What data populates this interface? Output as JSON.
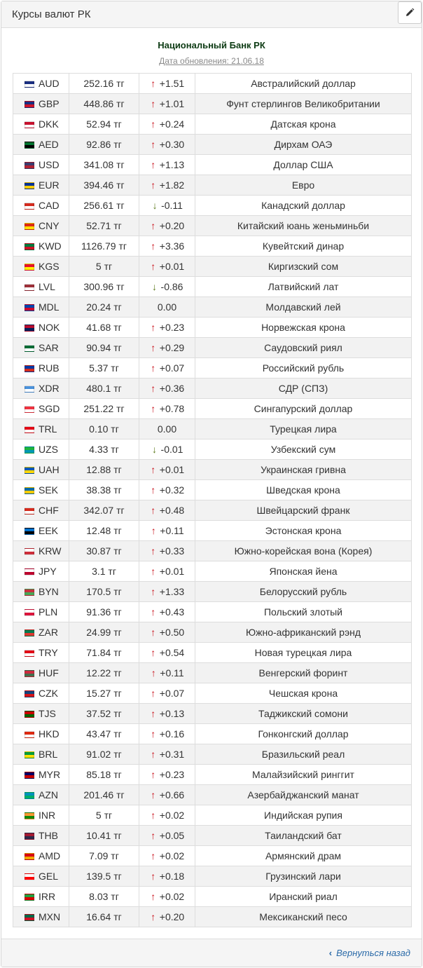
{
  "panel": {
    "title": "Курсы валют РК",
    "edit_icon": "pencil-icon"
  },
  "bank": {
    "name": "Национальный Банк РК",
    "update_label": "Дата обновления: 21.06.18"
  },
  "rates": [
    {
      "code": "AUD",
      "flag": [
        "#1a2e80",
        "#fff"
      ],
      "rate": "252.16 тг",
      "dir": "up",
      "change": "+1.51",
      "name": "Австралийский доллар"
    },
    {
      "code": "GBP",
      "flag": [
        "#1a2e80",
        "#cf142b"
      ],
      "rate": "448.86 тг",
      "dir": "up",
      "change": "+1.01",
      "name": "Фунт стерлингов Великобритании"
    },
    {
      "code": "DKK",
      "flag": [
        "#c8102e",
        "#fff"
      ],
      "rate": "52.94 тг",
      "dir": "up",
      "change": "+0.24",
      "name": "Датская крона"
    },
    {
      "code": "AED",
      "flag": [
        "#00732f",
        "#000"
      ],
      "rate": "92.86 тг",
      "dir": "up",
      "change": "+0.30",
      "name": "Дирхам ОАЭ"
    },
    {
      "code": "USD",
      "flag": [
        "#3c3b6e",
        "#b22234"
      ],
      "rate": "341.08 тг",
      "dir": "up",
      "change": "+1.13",
      "name": "Доллар США"
    },
    {
      "code": "EUR",
      "flag": [
        "#003399",
        "#ffcc00"
      ],
      "rate": "394.46 тг",
      "dir": "up",
      "change": "+1.82",
      "name": "Евро"
    },
    {
      "code": "CAD",
      "flag": [
        "#d52b1e",
        "#fff"
      ],
      "rate": "256.61 тг",
      "dir": "down",
      "change": "-0.11",
      "name": "Канадский доллар"
    },
    {
      "code": "CNY",
      "flag": [
        "#de2910",
        "#ffde00"
      ],
      "rate": "52.71 тг",
      "dir": "up",
      "change": "+0.20",
      "name": "Китайский юань женьминьби"
    },
    {
      "code": "KWD",
      "flag": [
        "#007a3d",
        "#ce1126"
      ],
      "rate": "1126.79 тг",
      "dir": "up",
      "change": "+3.36",
      "name": "Кувейтский динар"
    },
    {
      "code": "KGS",
      "flag": [
        "#e8112d",
        "#ffef00"
      ],
      "rate": "5 тг",
      "dir": "up",
      "change": "+0.01",
      "name": "Киргизский сом"
    },
    {
      "code": "LVL",
      "flag": [
        "#9e3039",
        "#fff"
      ],
      "rate": "300.96 тг",
      "dir": "down",
      "change": "-0.86",
      "name": "Латвийский лат"
    },
    {
      "code": "MDL",
      "flag": [
        "#0046ae",
        "#cc092f"
      ],
      "rate": "20.24 тг",
      "dir": "none",
      "change": "0.00",
      "name": "Молдавский лей"
    },
    {
      "code": "NOK",
      "flag": [
        "#ba0c2f",
        "#00205b"
      ],
      "rate": "41.68 тг",
      "dir": "up",
      "change": "+0.23",
      "name": "Норвежская крона"
    },
    {
      "code": "SAR",
      "flag": [
        "#006c35",
        "#fff"
      ],
      "rate": "90.94 тг",
      "dir": "up",
      "change": "+0.29",
      "name": "Саудовский риял"
    },
    {
      "code": "RUB",
      "flag": [
        "#0039a6",
        "#d52b1e"
      ],
      "rate": "5.37 тг",
      "dir": "up",
      "change": "+0.07",
      "name": "Российский рубль"
    },
    {
      "code": "XDR",
      "flag": [
        "#4b92db",
        "#fff"
      ],
      "rate": "480.1 тг",
      "dir": "up",
      "change": "+0.36",
      "name": "СДР (СПЗ)"
    },
    {
      "code": "SGD",
      "flag": [
        "#ef3340",
        "#fff"
      ],
      "rate": "251.22 тг",
      "dir": "up",
      "change": "+0.78",
      "name": "Сингапурский доллар"
    },
    {
      "code": "TRL",
      "flag": [
        "#e30a17",
        "#fff"
      ],
      "rate": "0.10 тг",
      "dir": "none",
      "change": "0.00",
      "name": "Турецкая лира"
    },
    {
      "code": "UZS",
      "flag": [
        "#1eb53a",
        "#0099b5"
      ],
      "rate": "4.33 тг",
      "dir": "down",
      "change": "-0.01",
      "name": "Узбекский сум"
    },
    {
      "code": "UAH",
      "flag": [
        "#0057b7",
        "#ffd700"
      ],
      "rate": "12.88 тг",
      "dir": "up",
      "change": "+0.01",
      "name": "Украинская гривна"
    },
    {
      "code": "SEK",
      "flag": [
        "#006aa7",
        "#fecc00"
      ],
      "rate": "38.38 тг",
      "dir": "up",
      "change": "+0.32",
      "name": "Шведская крона"
    },
    {
      "code": "CHF",
      "flag": [
        "#d52b1e",
        "#fff"
      ],
      "rate": "342.07 тг",
      "dir": "up",
      "change": "+0.48",
      "name": "Швейцарский франк"
    },
    {
      "code": "EEK",
      "flag": [
        "#0072ce",
        "#000"
      ],
      "rate": "12.48 тг",
      "dir": "up",
      "change": "+0.11",
      "name": "Эстонская крона"
    },
    {
      "code": "KRW",
      "flag": [
        "#fff",
        "#cd2e3a"
      ],
      "rate": "30.87 тг",
      "dir": "up",
      "change": "+0.33",
      "name": "Южно-корейская вона (Корея)"
    },
    {
      "code": "JPY",
      "flag": [
        "#fff",
        "#bc002d"
      ],
      "rate": "3.1 тг",
      "dir": "up",
      "change": "+0.01",
      "name": "Японская йена"
    },
    {
      "code": "BYN",
      "flag": [
        "#c8313e",
        "#4aa657"
      ],
      "rate": "170.5 тг",
      "dir": "up",
      "change": "+1.33",
      "name": "Белорусский рубль"
    },
    {
      "code": "PLN",
      "flag": [
        "#fff",
        "#dc143c"
      ],
      "rate": "91.36 тг",
      "dir": "up",
      "change": "+0.43",
      "name": "Польский злотый"
    },
    {
      "code": "ZAR",
      "flag": [
        "#007a4d",
        "#de3831"
      ],
      "rate": "24.99 тг",
      "dir": "up",
      "change": "+0.50",
      "name": "Южно-африканский рэнд"
    },
    {
      "code": "TRY",
      "flag": [
        "#e30a17",
        "#fff"
      ],
      "rate": "71.84 тг",
      "dir": "up",
      "change": "+0.54",
      "name": "Новая турецкая лира"
    },
    {
      "code": "HUF",
      "flag": [
        "#cd2a3e",
        "#436f4d"
      ],
      "rate": "12.22 тг",
      "dir": "up",
      "change": "+0.11",
      "name": "Венгерский форинт"
    },
    {
      "code": "CZK",
      "flag": [
        "#11457e",
        "#d7141a"
      ],
      "rate": "15.27 тг",
      "dir": "up",
      "change": "+0.07",
      "name": "Чешская крона"
    },
    {
      "code": "TJS",
      "flag": [
        "#cc0000",
        "#006600"
      ],
      "rate": "37.52 тг",
      "dir": "up",
      "change": "+0.13",
      "name": "Таджикский сомони"
    },
    {
      "code": "HKD",
      "flag": [
        "#de2910",
        "#fff"
      ],
      "rate": "43.47 тг",
      "dir": "up",
      "change": "+0.16",
      "name": "Гонконгский доллар"
    },
    {
      "code": "BRL",
      "flag": [
        "#009c3b",
        "#ffdf00"
      ],
      "rate": "91.02 тг",
      "dir": "up",
      "change": "+0.31",
      "name": "Бразильский реал"
    },
    {
      "code": "MYR",
      "flag": [
        "#010066",
        "#cc0001"
      ],
      "rate": "85.18 тг",
      "dir": "up",
      "change": "+0.23",
      "name": "Малайзийский ринггит"
    },
    {
      "code": "AZN",
      "flag": [
        "#0092bc",
        "#00af66"
      ],
      "rate": "201.46 тг",
      "dir": "up",
      "change": "+0.66",
      "name": "Азербайджанский манат"
    },
    {
      "code": "INR",
      "flag": [
        "#ff9933",
        "#138808"
      ],
      "rate": "5 тг",
      "dir": "up",
      "change": "+0.02",
      "name": "Индийская рупия"
    },
    {
      "code": "THB",
      "flag": [
        "#a51931",
        "#2d2a4a"
      ],
      "rate": "10.41 тг",
      "dir": "up",
      "change": "+0.05",
      "name": "Таиландский бат"
    },
    {
      "code": "AMD",
      "flag": [
        "#d90012",
        "#f2a800"
      ],
      "rate": "7.09 тг",
      "dir": "up",
      "change": "+0.02",
      "name": "Армянский драм"
    },
    {
      "code": "GEL",
      "flag": [
        "#fff",
        "#ff0000"
      ],
      "rate": "139.5 тг",
      "dir": "up",
      "change": "+0.18",
      "name": "Грузинский лари"
    },
    {
      "code": "IRR",
      "flag": [
        "#239f40",
        "#da0000"
      ],
      "rate": "8.03 тг",
      "dir": "up",
      "change": "+0.02",
      "name": "Иранский риал"
    },
    {
      "code": "MXN",
      "flag": [
        "#006847",
        "#ce1126"
      ],
      "rate": "16.64 тг",
      "dir": "up",
      "change": "+0.20",
      "name": "Мексиканский песо"
    }
  ],
  "footer": {
    "back_label": "Вернуться назад",
    "back_icon": "chevron-left-icon"
  }
}
